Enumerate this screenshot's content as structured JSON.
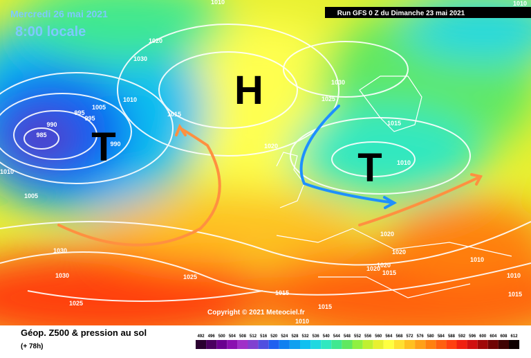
{
  "header": {
    "date": "Mercredi 26 mai 2021",
    "time": "8:00 locale",
    "run": "Run GFS 0 Z du Dimanche 23 mai 2021"
  },
  "centers": [
    "H",
    "T",
    "T"
  ],
  "isobar_labels": [
    1010,
    1010,
    1020,
    1030,
    1010,
    1005,
    995,
    995,
    990,
    985,
    990,
    1015,
    1010,
    1005,
    1030,
    1025,
    1015,
    1020,
    1010,
    1030,
    1030,
    1025,
    1025,
    1020,
    1020,
    1020,
    1020,
    1015,
    1010,
    1010,
    1015,
    1015,
    1015,
    1010
  ],
  "copyright": "Copyright © 2021 Meteociel.fr",
  "footer": {
    "title": "Géop. Z500 & pression au sol",
    "lead": "(+ 78h)"
  },
  "scale": {
    "values": [
      492,
      496,
      500,
      504,
      508,
      512,
      516,
      520,
      524,
      528,
      532,
      536,
      540,
      544,
      548,
      552,
      556,
      560,
      564,
      568,
      572,
      576,
      580,
      584,
      588,
      592,
      596,
      600,
      604,
      608,
      612
    ],
    "colors": [
      "#2a0030",
      "#4a0060",
      "#6a0090",
      "#8a10b0",
      "#a030c8",
      "#8040d0",
      "#5050e0",
      "#2060f0",
      "#1080f0",
      "#10a0f0",
      "#10c0f0",
      "#20d8e0",
      "#30e8c0",
      "#40e890",
      "#60e860",
      "#90f040",
      "#c0f030",
      "#e8f030",
      "#ffff40",
      "#ffe030",
      "#ffc020",
      "#ffa018",
      "#ff8010",
      "#ff6010",
      "#ff4010",
      "#f02010",
      "#d01010",
      "#a00808",
      "#700404",
      "#400202",
      "#100000"
    ]
  }
}
